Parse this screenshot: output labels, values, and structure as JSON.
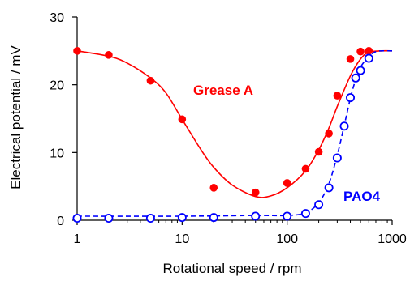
{
  "chart_data": {
    "type": "scatter",
    "title": "",
    "xlabel": "Rotational speed / rpm",
    "ylabel": "Electrical potential / mV",
    "xscale": "log",
    "xlim": [
      1,
      1000
    ],
    "ylim": [
      0,
      30
    ],
    "xticks": [
      "1",
      "10",
      "100",
      "1000"
    ],
    "yticks": [
      "0",
      "10",
      "20",
      "30"
    ],
    "grid": false,
    "series": [
      {
        "name": "Grease A",
        "color": "#ff0000",
        "marker": "filled-circle",
        "line": "solid",
        "points": [
          [
            1,
            25.0
          ],
          [
            2,
            24.4
          ],
          [
            5,
            20.6
          ],
          [
            10,
            14.9
          ],
          [
            20,
            4.8
          ],
          [
            50,
            4.1
          ],
          [
            100,
            5.5
          ],
          [
            150,
            7.6
          ],
          [
            200,
            10.1
          ],
          [
            250,
            12.8
          ],
          [
            300,
            18.4
          ],
          [
            400,
            23.8
          ],
          [
            500,
            24.9
          ],
          [
            600,
            25.0
          ]
        ],
        "curve": [
          [
            1,
            25.0
          ],
          [
            2,
            24.2
          ],
          [
            3,
            23.2
          ],
          [
            5,
            21.0
          ],
          [
            7,
            18.8
          ],
          [
            10,
            14.9
          ],
          [
            15,
            10.5
          ],
          [
            20,
            7.8
          ],
          [
            30,
            5.2
          ],
          [
            50,
            3.5
          ],
          [
            70,
            3.6
          ],
          [
            100,
            4.8
          ],
          [
            150,
            7.3
          ],
          [
            200,
            10.4
          ],
          [
            250,
            13.6
          ],
          [
            300,
            16.8
          ],
          [
            400,
            21.3
          ],
          [
            500,
            23.8
          ],
          [
            600,
            24.8
          ],
          [
            800,
            25.0
          ],
          [
            1000,
            25.0
          ]
        ]
      },
      {
        "name": "PAO4",
        "color": "#0000ff",
        "marker": "open-circle",
        "line": "dashed",
        "points": [
          [
            1,
            0.3
          ],
          [
            2,
            0.3
          ],
          [
            5,
            0.3
          ],
          [
            10,
            0.4
          ],
          [
            20,
            0.4
          ],
          [
            50,
            0.6
          ],
          [
            100,
            0.6
          ],
          [
            150,
            1.0
          ],
          [
            200,
            2.3
          ],
          [
            250,
            4.8
          ],
          [
            300,
            9.2
          ],
          [
            350,
            13.9
          ],
          [
            400,
            18.1
          ],
          [
            450,
            21.0
          ],
          [
            500,
            22.1
          ],
          [
            600,
            23.9
          ]
        ],
        "curve": [
          [
            1,
            0.6
          ],
          [
            10,
            0.6
          ],
          [
            50,
            0.7
          ],
          [
            100,
            0.7
          ],
          [
            150,
            1.1
          ],
          [
            200,
            2.6
          ],
          [
            250,
            5.4
          ],
          [
            300,
            9.6
          ],
          [
            350,
            14.0
          ],
          [
            400,
            18.0
          ],
          [
            450,
            20.8
          ],
          [
            500,
            22.6
          ],
          [
            600,
            24.2
          ],
          [
            700,
            24.9
          ],
          [
            800,
            25.0
          ],
          [
            1000,
            25.0
          ]
        ]
      }
    ]
  }
}
